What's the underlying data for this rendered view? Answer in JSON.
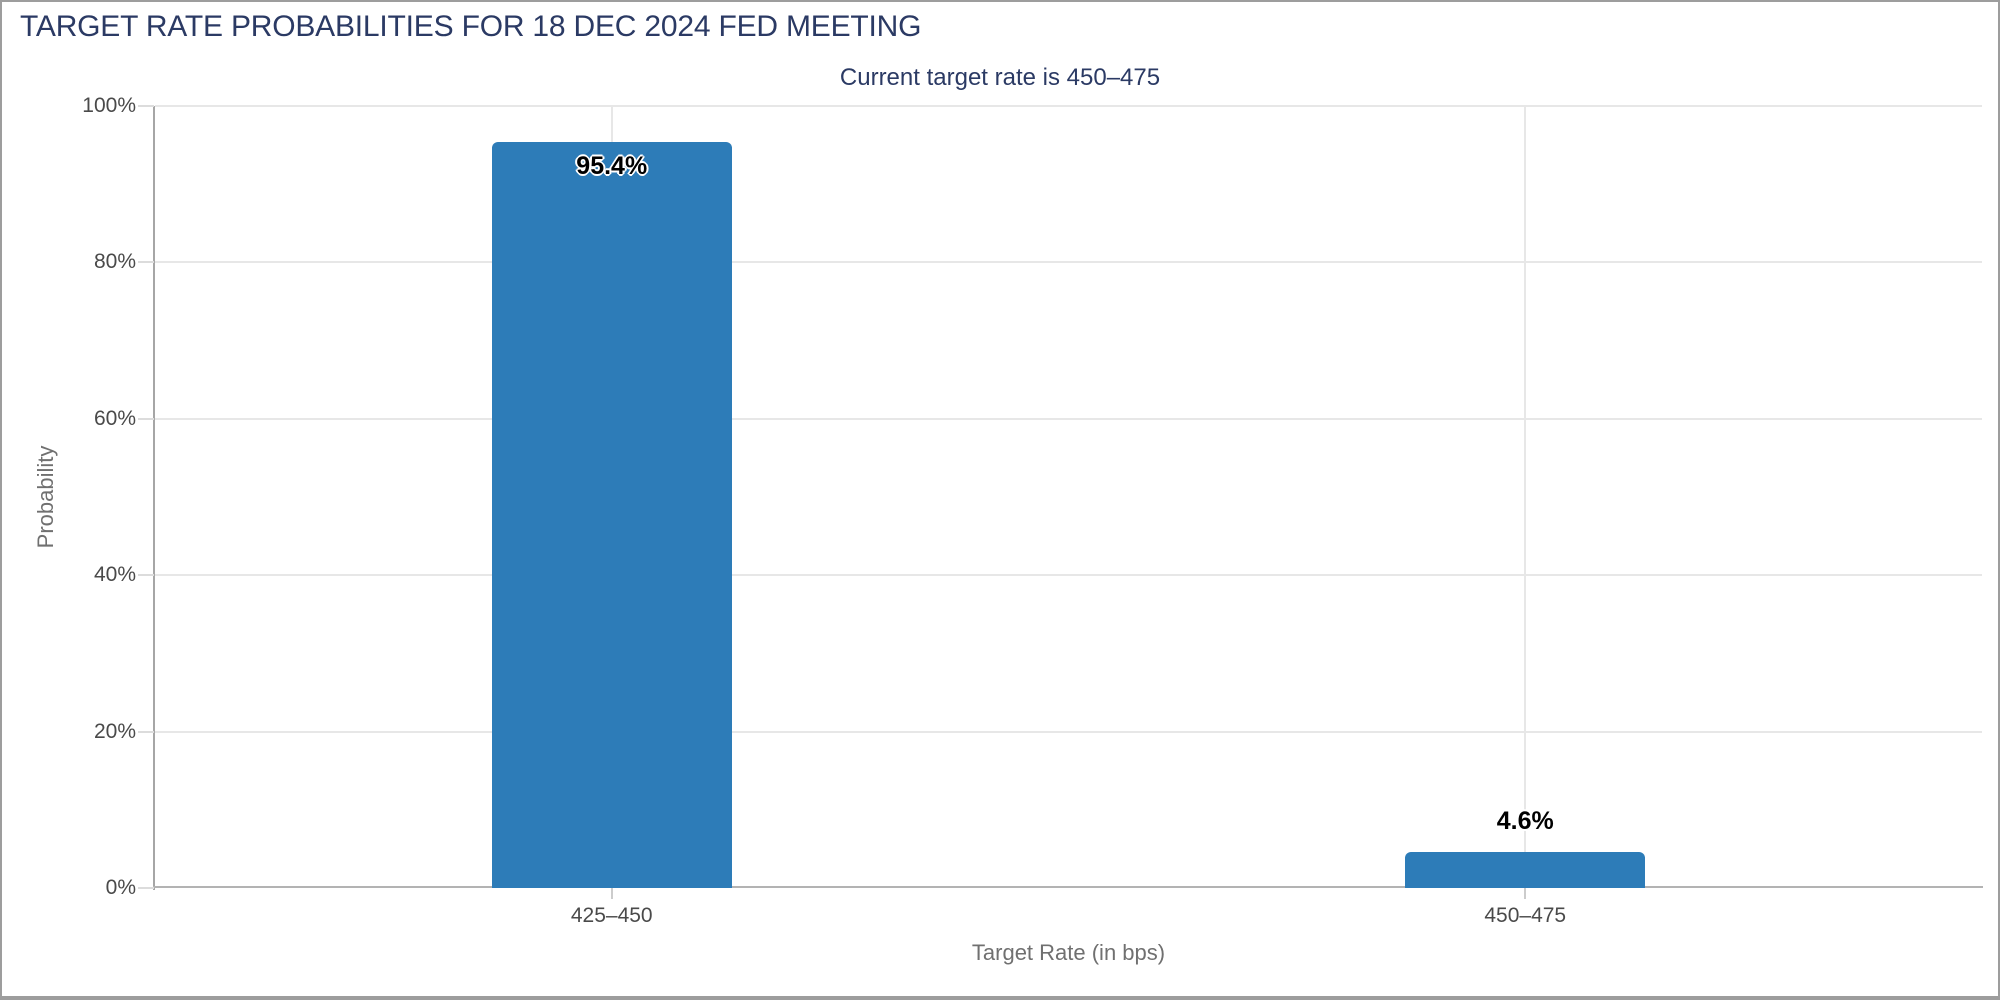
{
  "chart_data": {
    "type": "bar",
    "title": "TARGET RATE PROBABILITIES FOR 18 DEC 2024 FED MEETING",
    "subtitle": "Current target rate is 450–475",
    "categories": [
      "425–450",
      "450–475"
    ],
    "values": [
      95.4,
      4.6
    ],
    "value_labels": [
      "95.4%",
      "4.6%"
    ],
    "xlabel": "Target Rate (in bps)",
    "ylabel": "Probability",
    "ylim": [
      0,
      100
    ],
    "yticks": [
      0,
      20,
      40,
      60,
      80,
      100
    ],
    "ytick_labels": [
      "0%",
      "20%",
      "40%",
      "60%",
      "80%",
      "100%"
    ],
    "grid": true,
    "legend": "none",
    "bar_corner_radius_px": 6,
    "colors": {
      "bar": "#2d7cb8",
      "title_text": "#2b3a64",
      "axis_text": "#4a4a4a",
      "axis_title_text": "#707070",
      "gridline": "#e7e7e7",
      "axis_line": "#b3b3b3",
      "value_label_text": "#000000",
      "value_label_halo": "#ffffff",
      "frame_border": "#9d9d9d",
      "background": "#ffffff"
    }
  }
}
